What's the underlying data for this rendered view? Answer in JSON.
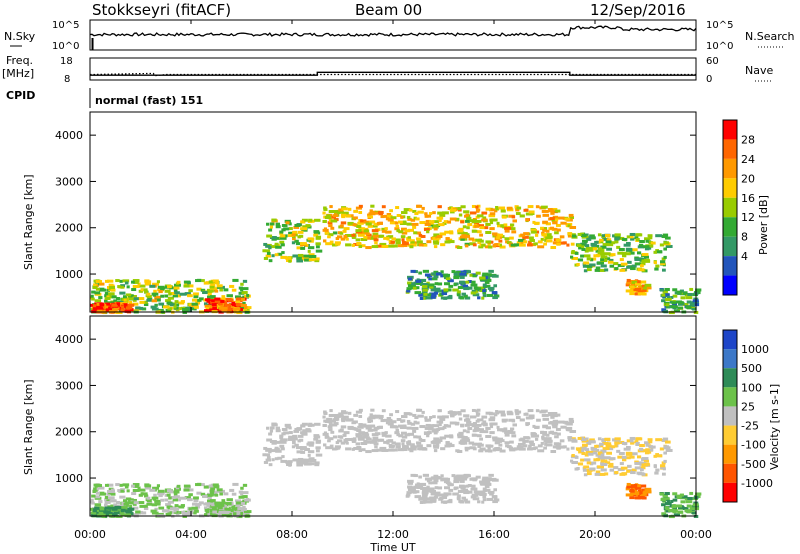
{
  "header": {
    "station": "Stokkseyri (fitACF)",
    "beam": "Beam 00",
    "date": "12/Sep/2016"
  },
  "top_panels": {
    "nsky_label": "N.Sky",
    "nsky_ticks": [
      "10^5",
      "10^0"
    ],
    "nsearch_label": "N.Search",
    "nsearch_ticks": [
      "10^5",
      "10^0"
    ],
    "freq_label": "Freq.",
    "freq_unit": "[MHz]",
    "freq_ticks": [
      "18",
      "8"
    ],
    "nave_label": "Nave",
    "nave_ticks": [
      "60",
      "0"
    ],
    "cpid_label": "CPID",
    "cpid_value": "normal (fast) 151"
  },
  "x_axis": {
    "label": "Time UT",
    "ticks": [
      "00:00",
      "04:00",
      "08:00",
      "12:00",
      "16:00",
      "20:00",
      "00:00"
    ]
  },
  "power_panel": {
    "ylabel": "Slant Range [km]",
    "yticks": [
      "4000",
      "3000",
      "2000",
      "1000"
    ],
    "cbar_label": "Power [dB]",
    "cbar_ticks": [
      "28",
      "24",
      "20",
      "16",
      "12",
      "8",
      "4"
    ],
    "cbar_colors": [
      "#ff0000",
      "#ff6600",
      "#ff9900",
      "#ffcc00",
      "#99cc00",
      "#33aa33",
      "#339966",
      "#2255bb",
      "#0000ff"
    ]
  },
  "velocity_panel": {
    "ylabel": "Slant Range [km]",
    "yticks": [
      "4000",
      "3000",
      "2000",
      "1000"
    ],
    "cbar_label": "Velocity [m s-1]",
    "cbar_ticks": [
      "1000",
      "500",
      "100",
      "25",
      "-25",
      "-100",
      "-500",
      "-1000"
    ],
    "cbar_colors": [
      "#1e46c8",
      "#3c78c8",
      "#2e8b57",
      "#6cc24a",
      "#c0c0c0",
      "#ffcc33",
      "#ff9900",
      "#ff5500",
      "#ff0000"
    ]
  },
  "chart_data": {
    "type": "heatmap",
    "panels": [
      "Power [dB]",
      "Velocity [m s-1]"
    ],
    "x_range": [
      "00:00",
      "24:00"
    ],
    "y_range_km": [
      180,
      4500
    ],
    "frequency_mhz": [
      [
        0,
        10.2
      ],
      [
        9,
        10.2
      ],
      [
        9,
        11.5
      ],
      [
        19,
        11.5
      ],
      [
        19,
        10.2
      ],
      [
        24,
        10.2
      ]
    ],
    "nave": [
      [
        0,
        15
      ],
      [
        2.5,
        18
      ],
      [
        2.6,
        12
      ],
      [
        3,
        15
      ],
      [
        24,
        15
      ]
    ],
    "scatter_regions": [
      {
        "start_h": 0.0,
        "end_h": 6.2,
        "range_km": [
          200,
          900
        ],
        "power_db": 16,
        "velocity": 25
      },
      {
        "start_h": 0.0,
        "end_h": 1.5,
        "range_km": [
          200,
          400
        ],
        "power_db": 28,
        "velocity": 100
      },
      {
        "start_h": 4.5,
        "end_h": 6.0,
        "range_km": [
          200,
          500
        ],
        "power_db": 26,
        "velocity": 25
      },
      {
        "start_h": 6.8,
        "end_h": 9.0,
        "range_km": [
          1300,
          2200
        ],
        "power_db": 16,
        "velocity": 0
      },
      {
        "start_h": 9.2,
        "end_h": 19.0,
        "range_km": [
          1600,
          2500
        ],
        "power_db": 20,
        "velocity": 0
      },
      {
        "start_h": 12.5,
        "end_h": 16.0,
        "range_km": [
          500,
          1100
        ],
        "power_db": 10,
        "velocity": 0
      },
      {
        "start_h": 19.0,
        "end_h": 22.8,
        "range_km": [
          1100,
          1900
        ],
        "power_db": 14,
        "velocity": -25
      },
      {
        "start_h": 21.2,
        "end_h": 22.0,
        "range_km": [
          600,
          900
        ],
        "power_db": 22,
        "velocity": -500
      },
      {
        "start_h": 22.5,
        "end_h": 24.0,
        "range_km": [
          200,
          700
        ],
        "power_db": 12,
        "velocity": 100
      }
    ]
  }
}
